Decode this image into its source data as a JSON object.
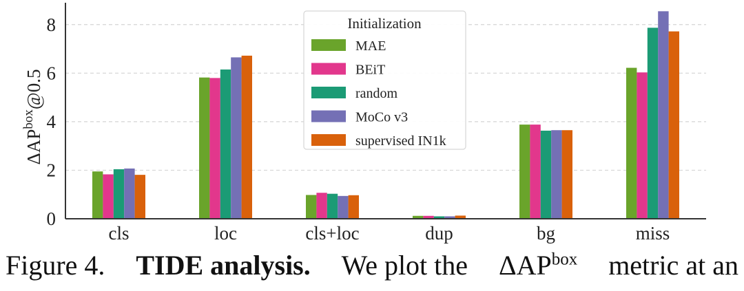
{
  "chart_data": {
    "type": "bar",
    "ylabel_main": "ΔAP",
    "ylabel_sup": "box",
    "ylabel_tail": "@0.5",
    "ylim": [
      0,
      8.9
    ],
    "yticks": [
      "0",
      "2",
      "4",
      "6",
      "8"
    ],
    "grid": true,
    "categories": [
      "cls",
      "loc",
      "cls+loc",
      "dup",
      "bg",
      "miss"
    ],
    "legend": {
      "title": "Initialization",
      "placement": "top-center"
    },
    "series": [
      {
        "name": "MAE",
        "color": "#6aa42b",
        "values": [
          1.95,
          5.82,
          0.98,
          0.12,
          3.88,
          6.22
        ]
      },
      {
        "name": "BEiT",
        "color": "#e2378c",
        "values": [
          1.83,
          5.8,
          1.07,
          0.12,
          3.88,
          6.03
        ]
      },
      {
        "name": "random",
        "color": "#1b9b75",
        "values": [
          2.04,
          6.15,
          1.03,
          0.1,
          3.63,
          7.87
        ]
      },
      {
        "name": "MoCo v3",
        "color": "#7470b5",
        "values": [
          2.07,
          6.65,
          0.94,
          0.1,
          3.65,
          8.55
        ]
      },
      {
        "name": "supervised IN1k",
        "color": "#d9610b",
        "values": [
          1.81,
          6.72,
          0.97,
          0.13,
          3.65,
          7.72
        ]
      }
    ]
  },
  "caption": {
    "figure_label": "Figure 4.",
    "bold_text": "TIDE analysis.",
    "text_before": "We plot the",
    "metric": "ΔAP",
    "metric_sup": "box",
    "text_after": "metric at an"
  }
}
